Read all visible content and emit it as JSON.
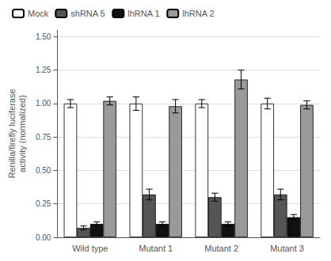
{
  "chart_data": {
    "type": "bar",
    "categories": [
      "Wild type",
      "Mutant 1",
      "Mutant 2",
      "Mutant 3"
    ],
    "series": [
      {
        "name": "Mock",
        "color": "#ffffff",
        "values": [
          1.0,
          1.0,
          1.0,
          1.0
        ],
        "errors": [
          0.03,
          0.05,
          0.03,
          0.04
        ]
      },
      {
        "name": "shRNA 5",
        "color": "#555555",
        "values": [
          0.07,
          0.32,
          0.3,
          0.32
        ],
        "errors": [
          0.015,
          0.04,
          0.03,
          0.04
        ]
      },
      {
        "name": "lhRNA 1",
        "color": "#111111",
        "values": [
          0.1,
          0.1,
          0.1,
          0.15
        ],
        "errors": [
          0.015,
          0.015,
          0.015,
          0.02
        ]
      },
      {
        "name": "lhRNA 2",
        "color": "#999999",
        "values": [
          1.02,
          0.98,
          1.18,
          0.99
        ],
        "errors": [
          0.03,
          0.05,
          0.07,
          0.03
        ]
      }
    ],
    "ylabel": "Renilla/firefly luciferase\nactivity (normalized)",
    "ylim": [
      0,
      1.55
    ],
    "yticks": [
      {
        "value": 0,
        "label": "0.00"
      },
      {
        "value": 0.25,
        "label": "0.25"
      },
      {
        "value": 0.5,
        "label": "0.50"
      },
      {
        "value": 0.75,
        "label": "0.75"
      },
      {
        "value": 1,
        "label": "1.00"
      },
      {
        "value": 1.25,
        "label": "1.25"
      },
      {
        "value": 1.5,
        "label": "1.50"
      }
    ],
    "legend": "upper left"
  }
}
